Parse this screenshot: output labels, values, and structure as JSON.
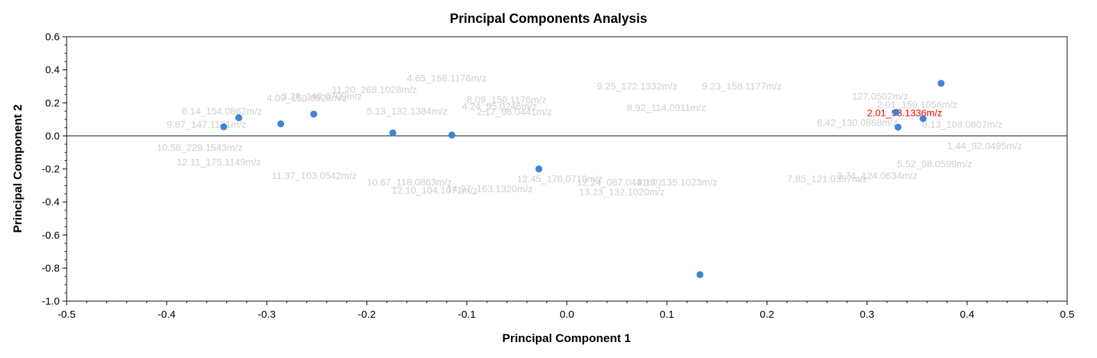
{
  "chart_data": {
    "type": "scatter",
    "title": "Principal Components Analysis",
    "xlabel": "Principal Component 1",
    "ylabel": "Principal Component 2",
    "xlim": [
      -0.5,
      0.5
    ],
    "ylim": [
      -1.0,
      0.6
    ],
    "xticks": [
      "-0.5",
      "-0.4",
      "-0.3",
      "-0.2",
      "-0.1",
      "0.0",
      "0.1",
      "0.2",
      "0.3",
      "0.4",
      "0.5"
    ],
    "yticks": [
      "0.6",
      "0.4",
      "0.2",
      "0.0",
      "-0.2",
      "-0.4",
      "-0.6",
      "-0.8",
      "-1.0"
    ],
    "grid": false,
    "zero_line": true,
    "score_color": "#3d85d6",
    "loading_color": "#cfcfcf",
    "highlight_color": "#ff0000",
    "scores": [
      {
        "x": -0.343,
        "y": 0.055
      },
      {
        "x": -0.328,
        "y": 0.11
      },
      {
        "x": -0.286,
        "y": 0.073
      },
      {
        "x": -0.253,
        "y": 0.132
      },
      {
        "x": -0.174,
        "y": 0.018
      },
      {
        "x": -0.115,
        "y": 0.005
      },
      {
        "x": -0.028,
        "y": -0.2
      },
      {
        "x": 0.133,
        "y": -0.84
      },
      {
        "x": 0.329,
        "y": 0.143
      },
      {
        "x": 0.331,
        "y": 0.053
      },
      {
        "x": 0.356,
        "y": 0.105
      },
      {
        "x": 0.374,
        "y": 0.318
      }
    ],
    "loading_labels": [
      {
        "x": -0.16,
        "y": 0.33,
        "text": "4.65_158.1176m/z"
      },
      {
        "x": 0.03,
        "y": 0.28,
        "text": "9.25_172.1332m/z"
      },
      {
        "x": 0.135,
        "y": 0.28,
        "text": "9.23_158.1177m/z"
      },
      {
        "x": -0.235,
        "y": 0.26,
        "text": "11.20_268.1028m/z"
      },
      {
        "x": 0.285,
        "y": 0.22,
        "text": "127.0502m/z"
      },
      {
        "x": -0.3,
        "y": 0.21,
        "text": "4.00_150.0928m/z"
      },
      {
        "x": -0.285,
        "y": 0.22,
        "text": "3.28_140.0709m/z"
      },
      {
        "x": -0.1,
        "y": 0.2,
        "text": "8.09_150.1176m/z"
      },
      {
        "x": -0.105,
        "y": 0.16,
        "text": "4.24_95.0246m/z"
      },
      {
        "x": 0.31,
        "y": 0.17,
        "text": "2.01_150.1056m/z"
      },
      {
        "x": -0.385,
        "y": 0.13,
        "text": "6.14_154.0862m/z"
      },
      {
        "x": -0.2,
        "y": 0.13,
        "text": "5.13_132.1384m/z"
      },
      {
        "x": -0.09,
        "y": 0.125,
        "text": "2.17_96.0441m/z"
      },
      {
        "x": 0.06,
        "y": 0.15,
        "text": "8.92_114.0911m/z"
      },
      {
        "x": -0.4,
        "y": 0.05,
        "text": "9.87_147.1121m/z"
      },
      {
        "x": 0.25,
        "y": 0.06,
        "text": "6.42_130.0868m/z"
      },
      {
        "x": -0.41,
        "y": -0.09,
        "text": "10.58_229.1543m/z"
      },
      {
        "x": -0.39,
        "y": -0.18,
        "text": "12.11_175.1149m/z"
      },
      {
        "x": -0.295,
        "y": -0.26,
        "text": "11.37_103.0542m/z"
      },
      {
        "x": -0.2,
        "y": -0.3,
        "text": "10.67_118.0863m/z"
      },
      {
        "x": -0.175,
        "y": -0.35,
        "text": "12.10_104.1071m/z"
      },
      {
        "x": -0.12,
        "y": -0.34,
        "text": "14.97_163.1320m/z"
      },
      {
        "x": -0.05,
        "y": -0.28,
        "text": "12.45_176.0710m/z"
      },
      {
        "x": 0.01,
        "y": -0.3,
        "text": "12.24_087.0441m/z"
      },
      {
        "x": 0.012,
        "y": -0.36,
        "text": "13.23_132.1020m/z"
      },
      {
        "x": 0.07,
        "y": -0.3,
        "text": "9.17_135.1023m/z"
      },
      {
        "x": 0.22,
        "y": -0.28,
        "text": "7.85_121.0397m/z"
      },
      {
        "x": 0.27,
        "y": -0.26,
        "text": "3.74_124.0634m/z"
      },
      {
        "x": 0.33,
        "y": -0.19,
        "text": "5.52_98.0599m/z"
      },
      {
        "x": 0.38,
        "y": -0.08,
        "text": "1.44_92.0495m/z"
      },
      {
        "x": 0.355,
        "y": 0.05,
        "text": "8.13_108.0807m/z"
      }
    ],
    "highlighted_label": {
      "x": 0.3,
      "y": 0.12,
      "text": "2.01_93.1336m/z"
    }
  }
}
